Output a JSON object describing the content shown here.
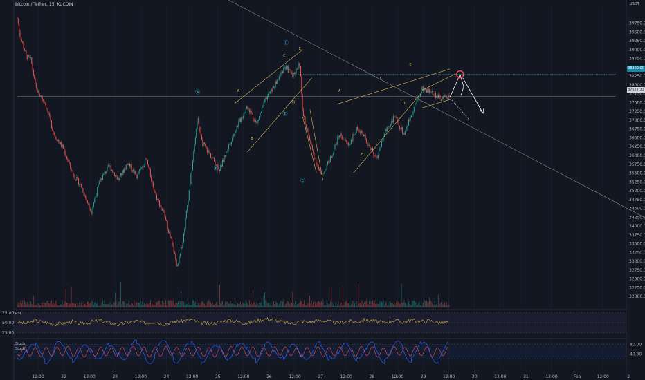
{
  "header": {
    "symbol": "Bitcoin / Tether, 15, KUCOIN",
    "currency": "USDT"
  },
  "price_tags": {
    "target": "38300.00",
    "current": "37677.33"
  },
  "colors": {
    "background": "#131722",
    "up": "#26a69a",
    "down": "#ef5350",
    "pattern": "#e0c060",
    "target_circle": "#ef5350",
    "rsi": "#d5b34a",
    "stoch_k": "#2962ff",
    "stoch_d": "#ef5350",
    "dotted_level": "#26c6da"
  },
  "chart_data": [
    {
      "type": "candlestick",
      "title": "",
      "ylim": [
        31750,
        40250
      ],
      "y_ticks": [
        "39750.00",
        "39500.00",
        "39250.00",
        "39000.00",
        "38750.00",
        "38500.00",
        "38250.00",
        "38000.00",
        "37750.00",
        "37500.00",
        "37250.00",
        "37000.00",
        "36750.00",
        "36500.00",
        "36250.00",
        "36000.00",
        "35750.00",
        "35500.00",
        "35250.00",
        "35000.00",
        "34750.00",
        "34500.00",
        "34250.00",
        "34000.00",
        "33750.00",
        "33500.00",
        "33250.00",
        "33000.00",
        "32750.00",
        "32500.00",
        "32250.00",
        "32000.00"
      ],
      "x_ticks": [
        "12:00",
        "22",
        "12:00",
        "23",
        "12:00",
        "24",
        "12:00",
        "25",
        "12:00",
        "26",
        "12:00",
        "27",
        "12:00",
        "28",
        "12:00",
        "29",
        "12:00",
        "30",
        "12:00",
        "31",
        "12:00",
        "Feb",
        "12:00",
        "2"
      ],
      "path_points": [
        [
          0,
          39900
        ],
        [
          0.3,
          39400
        ],
        [
          1,
          38800
        ],
        [
          1.5,
          38700
        ],
        [
          2,
          37900
        ],
        [
          3,
          37500
        ],
        [
          4,
          36600
        ],
        [
          5,
          36200
        ],
        [
          6,
          35500
        ],
        [
          7,
          35100
        ],
        [
          8,
          34400
        ],
        [
          9,
          35300
        ],
        [
          10,
          35700
        ],
        [
          11,
          35300
        ],
        [
          12,
          35800
        ],
        [
          13,
          35400
        ],
        [
          14,
          35900
        ],
        [
          15,
          34900
        ],
        [
          16,
          34300
        ],
        [
          17,
          33300
        ],
        [
          17.4,
          32800
        ],
        [
          18,
          33600
        ],
        [
          19,
          35700
        ],
        [
          19.6,
          37100
        ],
        [
          20,
          36400
        ],
        [
          21,
          36000
        ],
        [
          22,
          35600
        ],
        [
          23,
          36300
        ],
        [
          24,
          36900
        ],
        [
          25,
          37400
        ],
        [
          26,
          36900
        ],
        [
          27,
          37600
        ],
        [
          28,
          38000
        ],
        [
          29,
          38500
        ],
        [
          30,
          38300
        ],
        [
          30.7,
          38600
        ],
        [
          31,
          37200
        ],
        [
          32,
          36200
        ],
        [
          33,
          35400
        ],
        [
          34,
          35900
        ],
        [
          35,
          36600
        ],
        [
          36,
          36300
        ],
        [
          37,
          36800
        ],
        [
          38,
          36400
        ],
        [
          39,
          35900
        ],
        [
          40,
          36700
        ],
        [
          41,
          37100
        ],
        [
          42,
          36600
        ],
        [
          43,
          37300
        ],
        [
          44,
          37900
        ],
        [
          45,
          37800
        ],
        [
          46,
          37600
        ],
        [
          47,
          37700
        ]
      ],
      "target_price": 38300,
      "current_price": 37677.33,
      "wave_labels": [
        {
          "text": "A",
          "t": 24,
          "p": 37800
        },
        {
          "text": "B",
          "t": 25.5,
          "p": 36450
        },
        {
          "text": "C",
          "t": 29,
          "p": 38800
        },
        {
          "text": "D",
          "t": 30,
          "p": 37480
        },
        {
          "text": "E",
          "t": 30.7,
          "p": 39000
        },
        {
          "text": "A",
          "t": 35,
          "p": 37800
        },
        {
          "text": "B",
          "t": 37.5,
          "p": 36000
        },
        {
          "text": "C",
          "t": 39.5,
          "p": 38150
        },
        {
          "text": "D",
          "t": 42,
          "p": 37450
        },
        {
          "text": "E",
          "t": 42.7,
          "p": 38550
        }
      ],
      "wave_markers": [
        {
          "text": "Ⓐ",
          "t": 19.6,
          "p": 37750
        },
        {
          "text": "Ⓑ",
          "t": 21.6,
          "p": 35600
        },
        {
          "text": "Ⓒ",
          "t": 29.2,
          "p": 39150
        },
        {
          "text": "Ⓓ",
          "t": 29.3,
          "p": 38450
        },
        {
          "text": "Ⓔ",
          "t": 29.1,
          "p": 37150
        },
        {
          "text": "Ⓔ",
          "t": 31,
          "p": 35250
        }
      ]
    },
    {
      "type": "line",
      "title": "RSI",
      "ylim": [
        15,
        80
      ],
      "y_ticks": [
        "75.00",
        "50.00",
        "25.00"
      ],
      "values": [
        52,
        48,
        55,
        51,
        46,
        49,
        53,
        47,
        52,
        56,
        50,
        45,
        51,
        54,
        49,
        53,
        47,
        52,
        55,
        58,
        50,
        46,
        52,
        57,
        53,
        49,
        55,
        60,
        58,
        52,
        48,
        54,
        51,
        57,
        53,
        49,
        55,
        52,
        58,
        54,
        50,
        56,
        52,
        57,
        53,
        55,
        50,
        52
      ]
    },
    {
      "type": "line",
      "title": "Stoch",
      "series": [
        {
          "name": "Stoch",
          "values": [
            70,
            25,
            80,
            15,
            60,
            85,
            30,
            20,
            75,
            55,
            10,
            65,
            90,
            35,
            20,
            70,
            80,
            25,
            45,
            85,
            30,
            15,
            60,
            75,
            40,
            85,
            20,
            55,
            90,
            35,
            25,
            70,
            60,
            15,
            80,
            45,
            30,
            85,
            55,
            20,
            75,
            65,
            35,
            90,
            50,
            25,
            70,
            60
          ]
        },
        {
          "name": "Stoch D",
          "values": [
            55,
            50,
            45,
            50,
            55,
            60,
            45,
            40,
            50,
            55,
            45,
            50,
            60,
            55,
            40,
            50,
            60,
            50,
            45,
            55,
            50,
            40,
            45,
            60,
            55,
            55,
            45,
            50,
            60,
            55,
            40,
            50,
            55,
            45,
            55,
            55,
            45,
            60,
            55,
            40,
            55,
            60,
            50,
            60,
            55,
            45,
            55,
            55
          ]
        }
      ],
      "ylim": [
        0,
        95
      ],
      "y_ticks": [
        "80.00",
        "40.00"
      ]
    }
  ]
}
